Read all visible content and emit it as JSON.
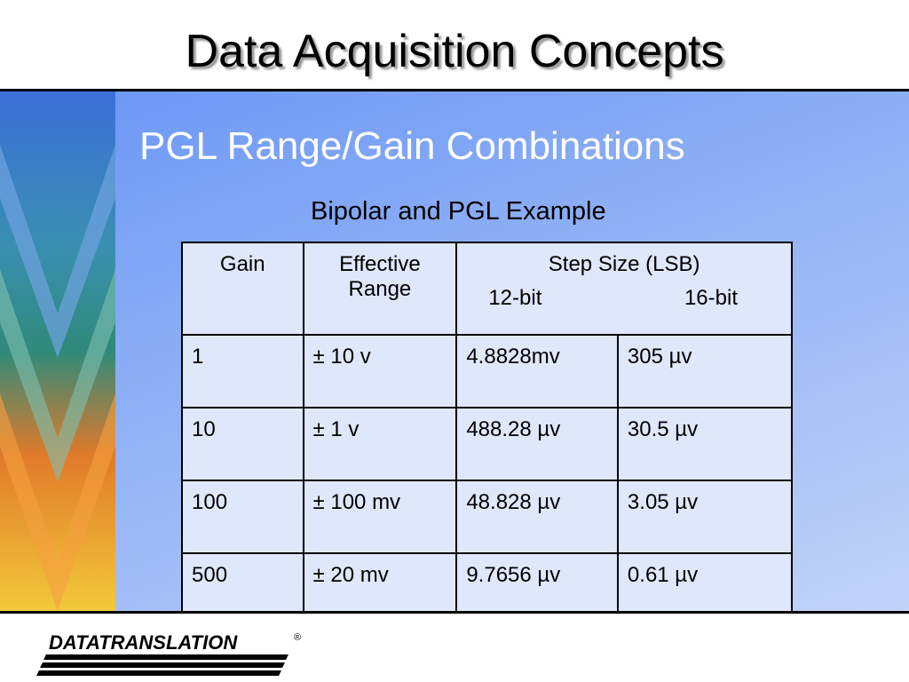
{
  "header": {
    "title": "Data Acquisition Concepts"
  },
  "slide": {
    "subtitle": "PGL Range/Gain Combinations",
    "caption": "Bipolar and PGL Example"
  },
  "table": {
    "header": {
      "gain": "Gain",
      "range": "Effective Range",
      "step": "Step Size (LSB)",
      "bits12": "12-bit",
      "bits16": "16-bit"
    },
    "rows": [
      [
        "1",
        "± 10 v",
        "4.8828mv",
        "305 µv"
      ],
      [
        "10",
        "± 1 v",
        "488.28 µv",
        "30.5 µv"
      ],
      [
        "100",
        "± 100 mv",
        "48.828 µv",
        "3.05 µv"
      ],
      [
        "500",
        "± 20 mv",
        "9.7656 µv",
        "0.61 µv"
      ]
    ]
  },
  "footer": {
    "logo": "DATATRANSLATION",
    "mark": "®"
  }
}
